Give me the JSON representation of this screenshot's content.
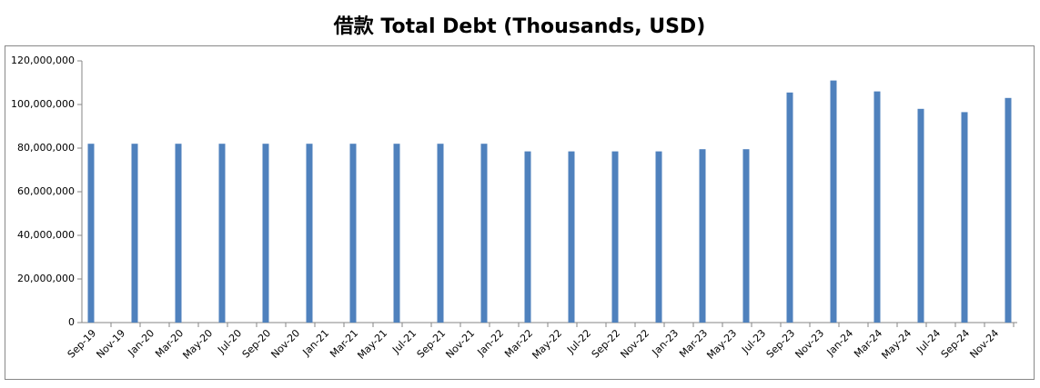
{
  "chart_data": {
    "type": "bar",
    "title": "借款 Total Debt (Thousands, USD)",
    "x": [
      "2019-09",
      "2019-12",
      "2020-03",
      "2020-06",
      "2020-09",
      "2020-12",
      "2021-03",
      "2021-06",
      "2021-09",
      "2021-12",
      "2022-03",
      "2022-06",
      "2022-09",
      "2022-12",
      "2023-03",
      "2023-06",
      "2023-09",
      "2023-12",
      "2024-03",
      "2024-06",
      "2024-09",
      "2024-12"
    ],
    "values": [
      82000000,
      82000000,
      82000000,
      82000000,
      82000000,
      82000000,
      82000000,
      82000000,
      82000000,
      82000000,
      78500000,
      78500000,
      78500000,
      78500000,
      79500000,
      79500000,
      105500000,
      111000000,
      106000000,
      98000000,
      96500000,
      103000000
    ],
    "color": "#4f81bd",
    "xlim": [
      "2019-09",
      "2024-12"
    ],
    "xticks": [
      {
        "value": "2019-09",
        "label": "Sep-19"
      },
      {
        "value": "2019-11",
        "label": "Nov-19"
      },
      {
        "value": "2020-01",
        "label": "Jan-20"
      },
      {
        "value": "2020-03",
        "label": "Mar-20"
      },
      {
        "value": "2020-05",
        "label": "May-20"
      },
      {
        "value": "2020-07",
        "label": "Jul-20"
      },
      {
        "value": "2020-09",
        "label": "Sep-20"
      },
      {
        "value": "2020-11",
        "label": "Nov-20"
      },
      {
        "value": "2021-01",
        "label": "Jan-21"
      },
      {
        "value": "2021-03",
        "label": "Mar-21"
      },
      {
        "value": "2021-05",
        "label": "May-21"
      },
      {
        "value": "2021-07",
        "label": "Jul-21"
      },
      {
        "value": "2021-09",
        "label": "Sep-21"
      },
      {
        "value": "2021-11",
        "label": "Nov-21"
      },
      {
        "value": "2022-01",
        "label": "Jan-22"
      },
      {
        "value": "2022-03",
        "label": "Mar-22"
      },
      {
        "value": "2022-05",
        "label": "May-22"
      },
      {
        "value": "2022-07",
        "label": "Jul-22"
      },
      {
        "value": "2022-09",
        "label": "Sep-22"
      },
      {
        "value": "2022-11",
        "label": "Nov-22"
      },
      {
        "value": "2023-01",
        "label": "Jan-23"
      },
      {
        "value": "2023-03",
        "label": "Mar-23"
      },
      {
        "value": "2023-05",
        "label": "May-23"
      },
      {
        "value": "2023-07",
        "label": "Jul-23"
      },
      {
        "value": "2023-09",
        "label": "Sep-23"
      },
      {
        "value": "2023-11",
        "label": "Nov-23"
      },
      {
        "value": "2024-01",
        "label": "Jan-24"
      },
      {
        "value": "2024-03",
        "label": "Mar-24"
      },
      {
        "value": "2024-05",
        "label": "May-24"
      },
      {
        "value": "2024-07",
        "label": "Jul-24"
      },
      {
        "value": "2024-09",
        "label": "Sep-24"
      },
      {
        "value": "2024-11",
        "label": "Nov-24"
      }
    ],
    "ylim": [
      0,
      120000000
    ],
    "yticks": [
      0,
      {
        "value": 20000000,
        "label": "20,000,000"
      },
      {
        "value": 40000000,
        "label": "40,000,000"
      },
      {
        "value": 60000000,
        "label": "60,000,000"
      },
      {
        "value": 80000000,
        "label": "80,000,000"
      },
      {
        "value": 100000000,
        "label": "100,000,000"
      },
      {
        "value": 120000000,
        "label": "120,000,000"
      }
    ],
    "grid": false
  }
}
